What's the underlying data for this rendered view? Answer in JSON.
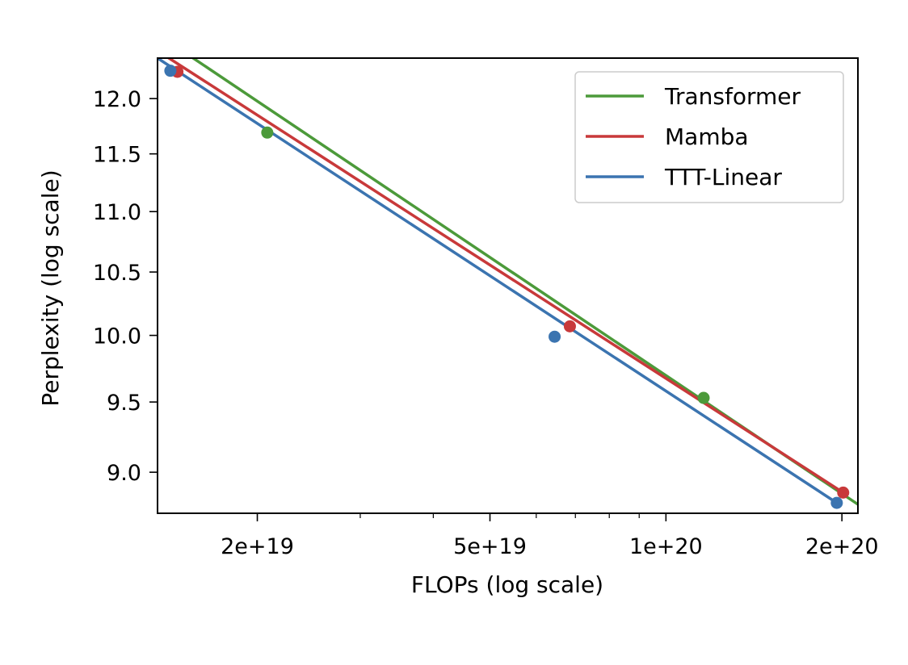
{
  "chart_data": {
    "type": "line",
    "xlabel": "FLOPs (log scale)",
    "ylabel": "Perplexity (log scale)",
    "xscale": "log",
    "yscale": "log",
    "xlim": [
      13500000000000000000,
      213000000000000000000
    ],
    "ylim": [
      8.72,
      12.38
    ],
    "x_ticks": [
      {
        "value": 20000000000000000000,
        "label": "2e+19"
      },
      {
        "value": 50000000000000000000,
        "label": "5e+19"
      },
      {
        "value": 100000000000000000000,
        "label": "1e+20"
      },
      {
        "value": 200000000000000000000,
        "label": "2e+20"
      }
    ],
    "x_minor_ticks": [
      30000000000000000000,
      40000000000000000000,
      60000000000000000000,
      70000000000000000000,
      80000000000000000000,
      90000000000000000000
    ],
    "y_ticks": [
      {
        "value": 9.0,
        "label": "9.0"
      },
      {
        "value": 9.5,
        "label": "9.5"
      },
      {
        "value": 10.0,
        "label": "10.0"
      },
      {
        "value": 10.5,
        "label": "10.5"
      },
      {
        "value": 11.0,
        "label": "11.0"
      },
      {
        "value": 11.5,
        "label": "11.5"
      },
      {
        "value": 12.0,
        "label": "12.0"
      }
    ],
    "grid": false,
    "legend_position": "top-right",
    "series": [
      {
        "name": "Transformer",
        "color": "#4c9a3a",
        "points": [
          {
            "x": 20800000000000000000,
            "y": 11.69
          },
          {
            "x": 116000000000000000000,
            "y": 9.53
          }
        ],
        "fit_line": [
          {
            "x": 13500000000000000000,
            "y": 12.61
          },
          {
            "x": 213000000000000000000,
            "y": 8.78
          }
        ]
      },
      {
        "name": "Mamba",
        "color": "#c8393a",
        "points": [
          {
            "x": 14600000000000000000,
            "y": 12.25
          },
          {
            "x": 68500000000000000000,
            "y": 10.07
          },
          {
            "x": 201000000000000000000,
            "y": 8.86
          }
        ],
        "fit_line": [
          {
            "x": 13500000000000000000,
            "y": 12.45
          },
          {
            "x": 201000000000000000000,
            "y": 8.86
          }
        ]
      },
      {
        "name": "TTT-Linear",
        "color": "#3b74b0",
        "points": [
          {
            "x": 14200000000000000000,
            "y": 12.26
          },
          {
            "x": 64500000000000000000,
            "y": 9.99
          },
          {
            "x": 196000000000000000000,
            "y": 8.79
          }
        ],
        "fit_line": [
          {
            "x": 13500000000000000000,
            "y": 12.38
          },
          {
            "x": 196000000000000000000,
            "y": 8.79
          }
        ]
      }
    ]
  }
}
